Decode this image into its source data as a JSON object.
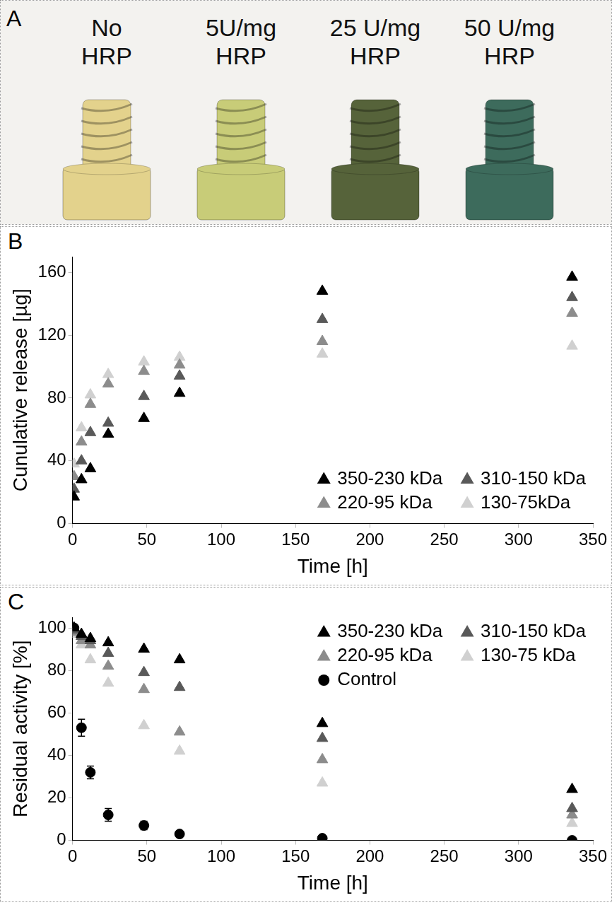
{
  "photo": {
    "letter": "A",
    "items": [
      {
        "label": "No HRP",
        "color": "#e3d28c"
      },
      {
        "label": "5U/mg HRP",
        "color": "#c8cc78"
      },
      {
        "label": "25 U/mg HRP",
        "color": "#56633a"
      },
      {
        "label": "50 U/mg HRP",
        "color": "#3d6b5c"
      }
    ]
  },
  "chart_data": [
    {
      "type": "scatter",
      "letter": "B",
      "y_label": "Cunulative release [µg]",
      "x_label": "Time [h]",
      "x": [
        1,
        6,
        12,
        24,
        48,
        72,
        168,
        336
      ],
      "series": [
        {
          "name": "350-230 kDa",
          "color": "#000000",
          "marker": "triangle",
          "values": [
            17,
            28,
            35,
            57,
            67,
            83,
            148,
            157
          ]
        },
        {
          "name": "310-150 kDa",
          "color": "#595959",
          "marker": "triangle",
          "values": [
            22,
            40,
            58,
            64,
            81,
            94,
            130,
            144
          ]
        },
        {
          "name": "220-95 kDa",
          "color": "#8c8c8c",
          "marker": "triangle",
          "values": [
            30,
            52,
            76,
            89,
            97,
            101,
            116,
            134
          ]
        },
        {
          "name": "130-75kDa",
          "color": "#d0d0d0",
          "marker": "triangle",
          "values": [
            38,
            61,
            82,
            95,
            103,
            106,
            108,
            113
          ]
        }
      ],
      "xlim": [
        0,
        350
      ],
      "xticks": [
        0,
        50,
        100,
        150,
        200,
        250,
        300,
        350
      ],
      "ylim": [
        0,
        170
      ],
      "yticks": [
        0,
        40,
        80,
        120,
        160
      ],
      "grid": false,
      "legend": "lower right"
    },
    {
      "type": "scatter",
      "letter": "C",
      "y_label": "Residual activity [%]",
      "x_label": "Time [h]",
      "x": [
        1,
        6,
        12,
        24,
        48,
        72,
        168,
        336
      ],
      "series": [
        {
          "name": "350-230 kDa",
          "color": "#000000",
          "marker": "triangle",
          "values": [
            100,
            97,
            95,
            93,
            90,
            85,
            55,
            24
          ]
        },
        {
          "name": "310-150 kDa",
          "color": "#595959",
          "marker": "triangle",
          "values": [
            99,
            96,
            94,
            88,
            79,
            72,
            48,
            15
          ]
        },
        {
          "name": "220-95 kDa",
          "color": "#8c8c8c",
          "marker": "triangle",
          "values": [
            98,
            94,
            92,
            82,
            71,
            51,
            38,
            12
          ]
        },
        {
          "name": "130-75 kDa",
          "color": "#d0d0d0",
          "marker": "triangle",
          "values": [
            97,
            92,
            85,
            74,
            54,
            42,
            27,
            8
          ]
        },
        {
          "name": "Control",
          "color": "#000000",
          "marker": "circle",
          "values": [
            100,
            53,
            32,
            12,
            7,
            3,
            1,
            0
          ],
          "errors": [
            1,
            4,
            3,
            3,
            2,
            1,
            1,
            0
          ]
        }
      ],
      "xlim": [
        0,
        350
      ],
      "xticks": [
        0,
        50,
        100,
        150,
        200,
        250,
        300,
        350
      ],
      "ylim": [
        0,
        105
      ],
      "yticks": [
        0,
        20,
        40,
        60,
        80,
        100
      ],
      "grid": false,
      "legend": "upper right"
    }
  ]
}
